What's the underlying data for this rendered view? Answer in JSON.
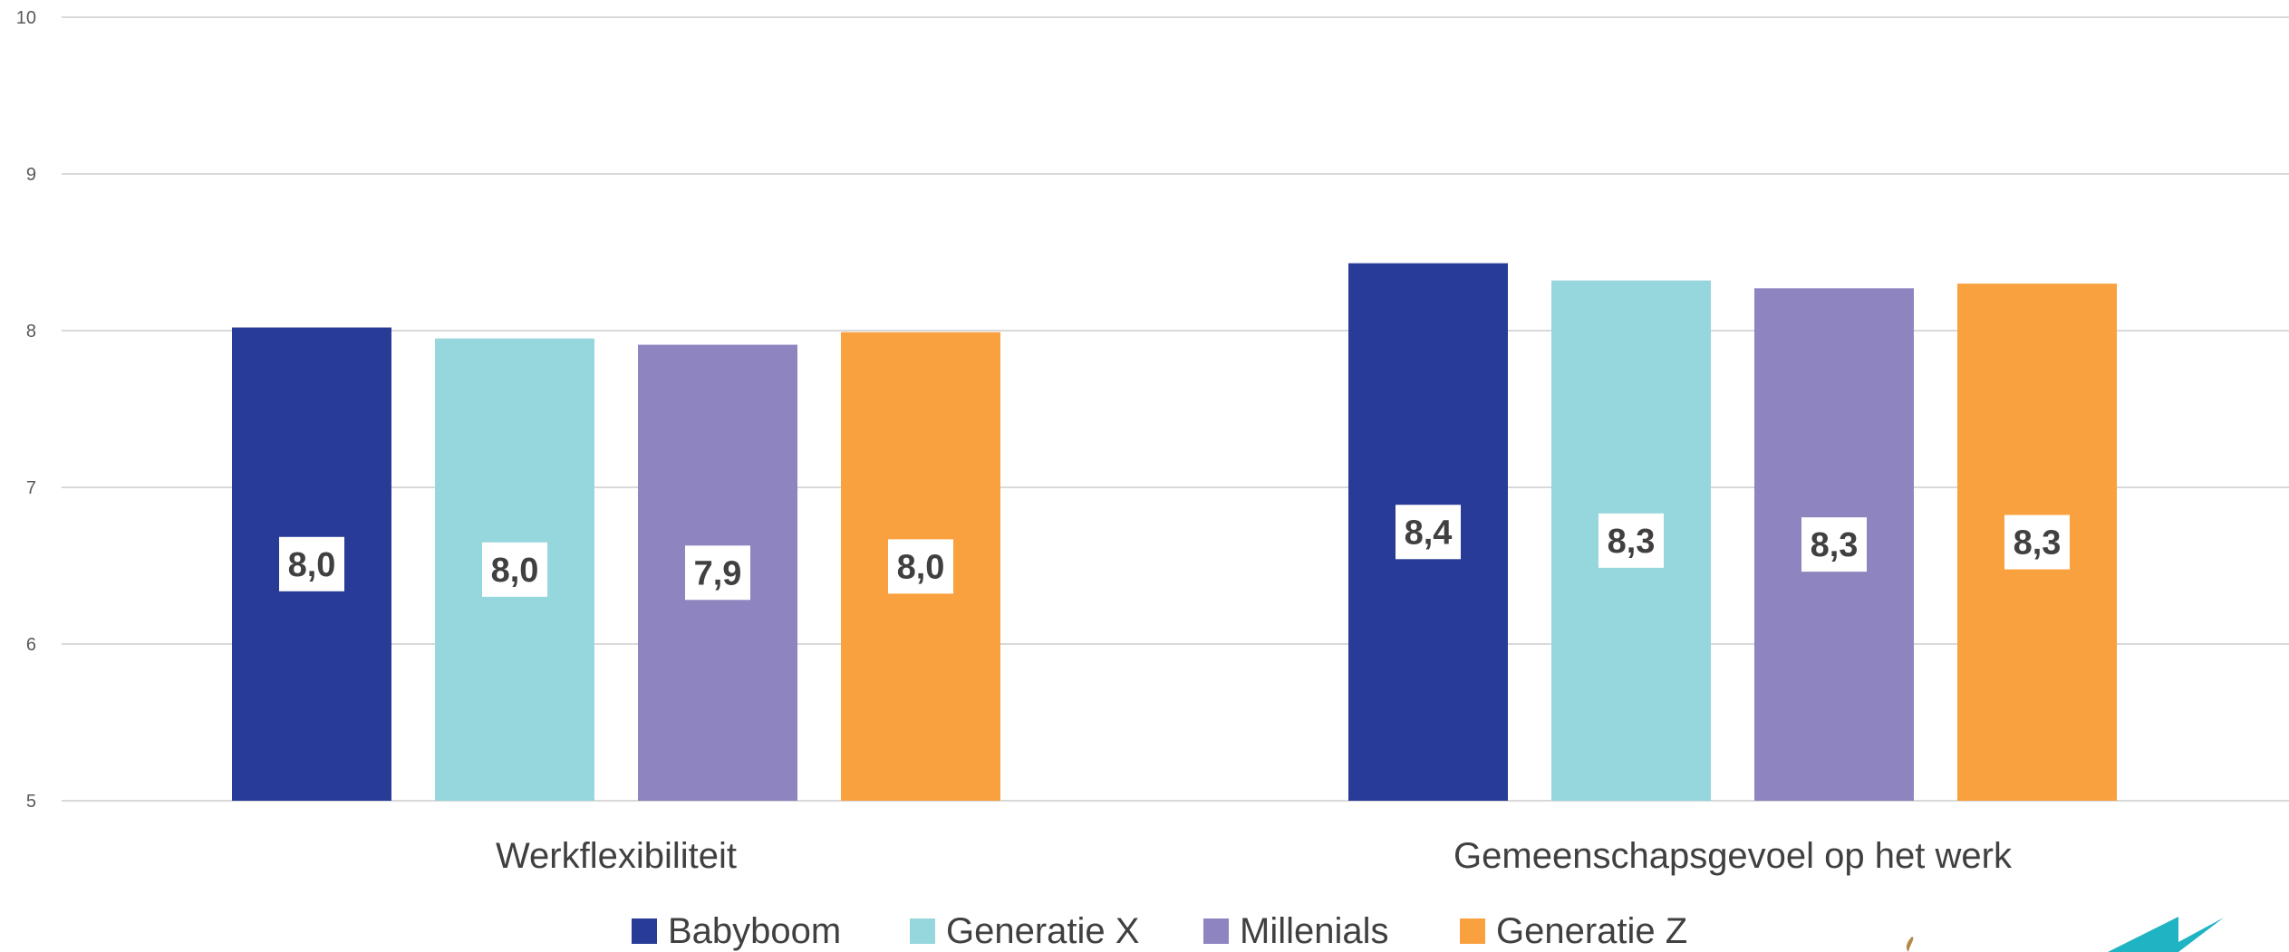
{
  "chart_data": {
    "type": "bar",
    "categories": [
      "Werkflexibiliteit",
      "Gemeenschapsgevoel op het werk"
    ],
    "series": [
      {
        "name": "Babyboom",
        "color": "#283b96",
        "values": [
          8.02,
          8.43
        ],
        "labels": [
          "8,0",
          "8,4"
        ]
      },
      {
        "name": "Generatie X",
        "color": "#96d7dd",
        "values": [
          7.95,
          8.32
        ],
        "labels": [
          "8,0",
          "8,3"
        ]
      },
      {
        "name": "Millenials",
        "color": "#8d84c0",
        "values": [
          7.91,
          8.27
        ],
        "labels": [
          "7,9",
          "8,3"
        ]
      },
      {
        "name": "Generatie Z",
        "color": "#f9a13f",
        "values": [
          7.99,
          8.3
        ],
        "labels": [
          "8,0",
          "8,3"
        ]
      }
    ],
    "ylim": [
      5,
      10
    ],
    "yticks": [
      5,
      6,
      7,
      8,
      9,
      10
    ],
    "grid": true,
    "legend": "bottom",
    "title": "",
    "xlabel": "",
    "ylabel": ""
  }
}
